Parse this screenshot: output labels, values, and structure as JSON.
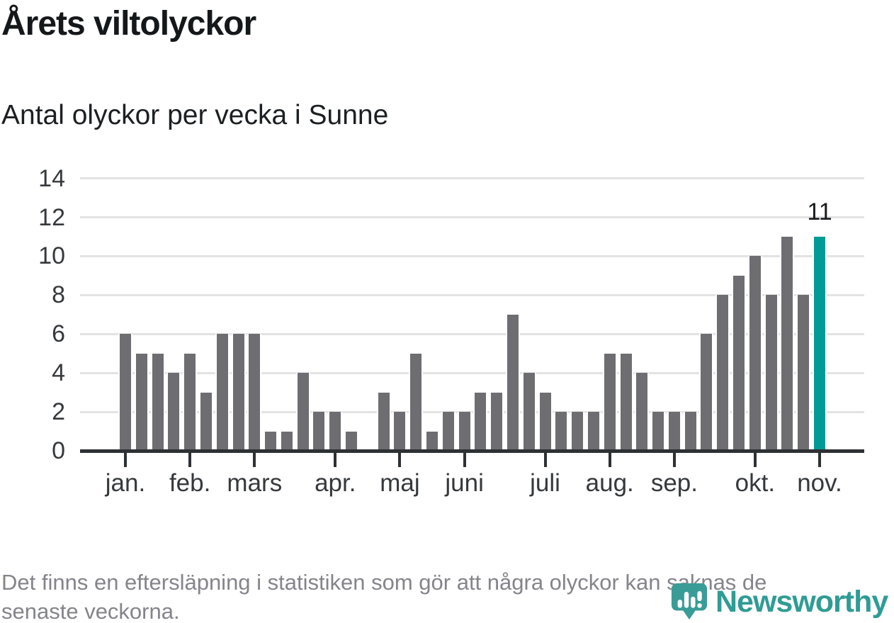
{
  "header": {
    "title": "Årets viltolyckor",
    "subtitle": "Antal olyckor per vecka i Sunne"
  },
  "chart_data": {
    "type": "bar",
    "title": "Årets viltolyckor",
    "subtitle": "Antal olyckor per vecka i Sunne",
    "x_unit": "vecka",
    "values": [
      6,
      5,
      5,
      4,
      5,
      3,
      6,
      6,
      6,
      1,
      1,
      4,
      2,
      2,
      1,
      0,
      3,
      2,
      5,
      1,
      2,
      2,
      3,
      3,
      7,
      4,
      3,
      2,
      2,
      2,
      5,
      5,
      4,
      2,
      2,
      2,
      6,
      8,
      9,
      10,
      8,
      11,
      8,
      11
    ],
    "x_tick_labels": [
      "jan.",
      "feb.",
      "mars",
      "apr.",
      "maj",
      "juni",
      "juli",
      "aug.",
      "sep.",
      "okt.",
      "nov."
    ],
    "x_tick_slot_indices": [
      0,
      4,
      8,
      13,
      17,
      21,
      26,
      30,
      34,
      39,
      43
    ],
    "y_ticks": [
      0,
      2,
      4,
      6,
      8,
      10,
      12,
      14
    ],
    "ylim": [
      0,
      14
    ],
    "grid": true,
    "highlight_index": 43,
    "highlight_value_label": "11",
    "bar_color": "#6d6d72",
    "highlight_color": "#009b94",
    "gridline_color": "#e3e3e3",
    "axis_color": "#2e3134"
  },
  "footer": {
    "note_lines": [
      "Det finns en eftersläpning i statistiken som gör att några olyckor kan saknas de",
      "senaste veckorna."
    ],
    "logo_text": "Newsworthy",
    "logo_color": "#2f9c95"
  }
}
